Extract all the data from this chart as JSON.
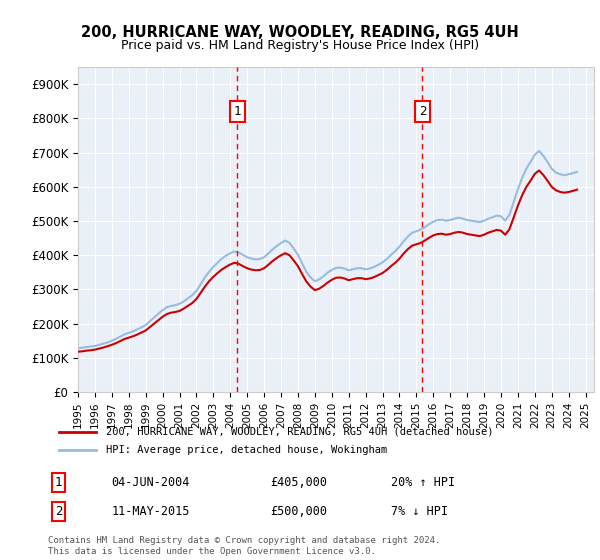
{
  "title1": "200, HURRICANE WAY, WOODLEY, READING, RG5 4UH",
  "title2": "Price paid vs. HM Land Registry's House Price Index (HPI)",
  "ylabel_ticks": [
    "£0",
    "£100K",
    "£200K",
    "£300K",
    "£400K",
    "£500K",
    "£600K",
    "£700K",
    "£800K",
    "£900K"
  ],
  "ytick_values": [
    0,
    100000,
    200000,
    300000,
    400000,
    500000,
    600000,
    700000,
    800000,
    900000
  ],
  "ylim": [
    0,
    950000
  ],
  "xlim_start": 1995.0,
  "xlim_end": 2025.5,
  "legend_line1": "200, HURRICANE WAY, WOODLEY, READING, RG5 4UH (detached house)",
  "legend_line2": "HPI: Average price, detached house, Wokingham",
  "line1_color": "#cc0000",
  "line2_color": "#99bbdd",
  "annotation1_date": "04-JUN-2004",
  "annotation1_price": "£405,000",
  "annotation1_hpi": "20% ↑ HPI",
  "annotation2_date": "11-MAY-2015",
  "annotation2_price": "£500,000",
  "annotation2_hpi": "7% ↓ HPI",
  "sale1_x": 2004.42,
  "sale1_y": 405000,
  "sale2_x": 2015.36,
  "sale2_y": 500000,
  "background_color": "#eaf0f8",
  "footer": "Contains HM Land Registry data © Crown copyright and database right 2024.\nThis data is licensed under the Open Government Licence v3.0.",
  "hpi_data_x": [
    1995.0,
    1995.25,
    1995.5,
    1995.75,
    1996.0,
    1996.25,
    1996.5,
    1996.75,
    1997.0,
    1997.25,
    1997.5,
    1997.75,
    1998.0,
    1998.25,
    1998.5,
    1998.75,
    1999.0,
    1999.25,
    1999.5,
    1999.75,
    2000.0,
    2000.25,
    2000.5,
    2000.75,
    2001.0,
    2001.25,
    2001.5,
    2001.75,
    2002.0,
    2002.25,
    2002.5,
    2002.75,
    2003.0,
    2003.25,
    2003.5,
    2003.75,
    2004.0,
    2004.25,
    2004.5,
    2004.75,
    2005.0,
    2005.25,
    2005.5,
    2005.75,
    2006.0,
    2006.25,
    2006.5,
    2006.75,
    2007.0,
    2007.25,
    2007.5,
    2007.75,
    2008.0,
    2008.25,
    2008.5,
    2008.75,
    2009.0,
    2009.25,
    2009.5,
    2009.75,
    2010.0,
    2010.25,
    2010.5,
    2010.75,
    2011.0,
    2011.25,
    2011.5,
    2011.75,
    2012.0,
    2012.25,
    2012.5,
    2012.75,
    2013.0,
    2013.25,
    2013.5,
    2013.75,
    2014.0,
    2014.25,
    2014.5,
    2014.75,
    2015.0,
    2015.25,
    2015.5,
    2015.75,
    2016.0,
    2016.25,
    2016.5,
    2016.75,
    2017.0,
    2017.25,
    2017.5,
    2017.75,
    2018.0,
    2018.25,
    2018.5,
    2018.75,
    2019.0,
    2019.25,
    2019.5,
    2019.75,
    2020.0,
    2020.25,
    2020.5,
    2020.75,
    2021.0,
    2021.25,
    2021.5,
    2021.75,
    2022.0,
    2022.25,
    2022.5,
    2022.75,
    2023.0,
    2023.25,
    2023.5,
    2023.75,
    2024.0,
    2024.25,
    2024.5
  ],
  "hpi_data_y": [
    118000,
    119000,
    121000,
    122000,
    124000,
    127000,
    130000,
    134000,
    138000,
    143000,
    149000,
    155000,
    159000,
    163000,
    168000,
    174000,
    180000,
    190000,
    200000,
    210000,
    220000,
    228000,
    232000,
    234000,
    237000,
    244000,
    252000,
    260000,
    272000,
    290000,
    308000,
    324000,
    337000,
    348000,
    358000,
    366000,
    373000,
    378000,
    375000,
    368000,
    362000,
    358000,
    356000,
    357000,
    362000,
    372000,
    383000,
    392000,
    400000,
    406000,
    400000,
    385000,
    368000,
    345000,
    323000,
    308000,
    298000,
    302000,
    310000,
    320000,
    328000,
    334000,
    335000,
    332000,
    327000,
    330000,
    333000,
    333000,
    330000,
    332000,
    336000,
    342000,
    348000,
    357000,
    368000,
    378000,
    390000,
    405000,
    418000,
    428000,
    432000,
    436000,
    443000,
    451000,
    458000,
    462000,
    463000,
    460000,
    462000,
    466000,
    468000,
    466000,
    462000,
    460000,
    458000,
    456000,
    460000,
    466000,
    470000,
    474000,
    472000,
    460000,
    476000,
    510000,
    545000,
    575000,
    600000,
    618000,
    638000,
    648000,
    635000,
    618000,
    600000,
    590000,
    585000,
    583000,
    585000,
    588000,
    592000
  ],
  "hpi_indexed_x": [
    1995.0,
    1995.25,
    1995.5,
    1995.75,
    1996.0,
    1996.25,
    1996.5,
    1996.75,
    1997.0,
    1997.25,
    1997.5,
    1997.75,
    1998.0,
    1998.25,
    1998.5,
    1998.75,
    1999.0,
    1999.25,
    1999.5,
    1999.75,
    2000.0,
    2000.25,
    2000.5,
    2000.75,
    2001.0,
    2001.25,
    2001.5,
    2001.75,
    2002.0,
    2002.25,
    2002.5,
    2002.75,
    2003.0,
    2003.25,
    2003.5,
    2003.75,
    2004.0,
    2004.25,
    2004.5,
    2004.75,
    2005.0,
    2005.25,
    2005.5,
    2005.75,
    2006.0,
    2006.25,
    2006.5,
    2006.75,
    2007.0,
    2007.25,
    2007.5,
    2007.75,
    2008.0,
    2008.25,
    2008.5,
    2008.75,
    2009.0,
    2009.25,
    2009.5,
    2009.75,
    2010.0,
    2010.25,
    2010.5,
    2010.75,
    2011.0,
    2011.25,
    2011.5,
    2011.75,
    2012.0,
    2012.25,
    2012.5,
    2012.75,
    2013.0,
    2013.25,
    2013.5,
    2013.75,
    2014.0,
    2014.25,
    2014.5,
    2014.75,
    2015.0,
    2015.25,
    2015.5,
    2015.75,
    2016.0,
    2016.25,
    2016.5,
    2016.75,
    2017.0,
    2017.25,
    2017.5,
    2017.75,
    2018.0,
    2018.25,
    2018.5,
    2018.75,
    2019.0,
    2019.25,
    2019.5,
    2019.75,
    2020.0,
    2020.25,
    2020.5,
    2020.75,
    2021.0,
    2021.25,
    2021.5,
    2021.75,
    2022.0,
    2022.25,
    2022.5,
    2022.75,
    2023.0,
    2023.25,
    2023.5,
    2023.75,
    2024.0,
    2024.25,
    2024.5
  ],
  "hpi_indexed_y": [
    128000,
    129500,
    131500,
    133000,
    134500,
    138000,
    141500,
    145000,
    150000,
    155500,
    162000,
    168500,
    173000,
    177500,
    183000,
    189000,
    196000,
    207000,
    218000,
    229000,
    239000,
    248000,
    252000,
    254000,
    258000,
    265000,
    274000,
    283000,
    296000,
    315000,
    335000,
    352000,
    366000,
    378000,
    390000,
    399000,
    406000,
    411000,
    408000,
    401000,
    394000,
    390000,
    388000,
    389000,
    394000,
    405000,
    417000,
    427000,
    436000,
    443000,
    436000,
    420000,
    401000,
    376000,
    351000,
    335000,
    324000,
    329000,
    338000,
    349000,
    357000,
    363000,
    364000,
    361000,
    356000,
    359000,
    362000,
    362000,
    359000,
    361000,
    366000,
    372000,
    379000,
    389000,
    401000,
    412000,
    425000,
    441000,
    455000,
    466000,
    470000,
    475000,
    482000,
    491000,
    498000,
    503000,
    504000,
    501000,
    503000,
    507000,
    510000,
    507000,
    503000,
    501000,
    499000,
    497000,
    501000,
    507000,
    511000,
    516000,
    514000,
    501000,
    518000,
    555000,
    593000,
    626000,
    653000,
    673000,
    694000,
    705000,
    691000,
    673000,
    653000,
    642000,
    637000,
    634000,
    637000,
    640000,
    644000
  ]
}
